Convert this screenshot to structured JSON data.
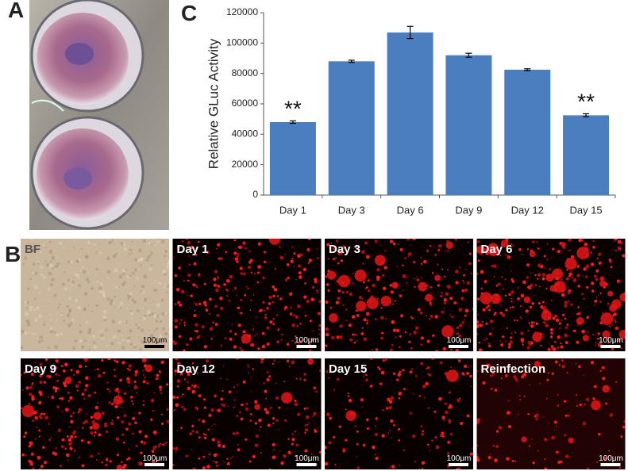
{
  "panels": {
    "a": "A",
    "b": "B",
    "c": "C"
  },
  "chart_data": {
    "type": "bar",
    "ylabel": "Relative GLuc Activity",
    "categories": [
      "Day 1",
      "Day 3",
      "Day 6",
      "Day 9",
      "Day 12",
      "Day 15"
    ],
    "values": [
      48000,
      88000,
      107000,
      92000,
      82500,
      52500
    ],
    "errors": [
      800,
      700,
      4000,
      1300,
      600,
      1000
    ],
    "value_annotations": [
      "**",
      null,
      null,
      null,
      null,
      "**"
    ],
    "color": "#4a7ebf",
    "ylim": [
      0,
      120000
    ],
    "yticks": [
      0,
      20000,
      40000,
      60000,
      80000,
      100000,
      120000
    ],
    "grid": false
  },
  "images": [
    {
      "label": "BF",
      "scale": "100μm"
    },
    {
      "label": "Day 1",
      "scale": "100μm"
    },
    {
      "label": "Day 3",
      "scale": "100μm"
    },
    {
      "label": "Day 6",
      "scale": "100μm"
    },
    {
      "label": "Day 9",
      "scale": "100μm"
    },
    {
      "label": "Day 12",
      "scale": "100μm"
    },
    {
      "label": "Day 15",
      "scale": "100μm"
    },
    {
      "label": "Reinfection",
      "scale": "100μm"
    }
  ]
}
